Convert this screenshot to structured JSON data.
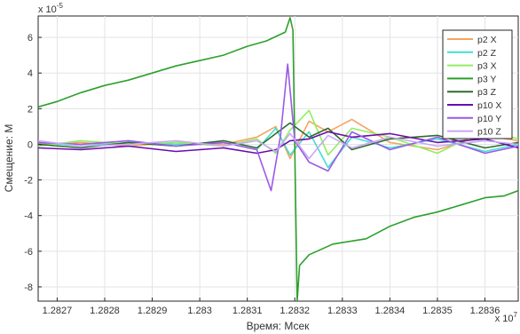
{
  "chart_data": {
    "type": "line",
    "xlabel": "Время: Мсек",
    "ylabel": "Смещение: М",
    "x_exponent_label": "x 10",
    "x_exponent_power": "7",
    "y_exponent_label": "x 10",
    "y_exponent_power": "-5",
    "xlim": [
      12826.6,
      12836.7
    ],
    "ylim": [
      -8.8,
      7.2
    ],
    "x_tick_values": [
      12827,
      12828,
      12829,
      12830,
      12831,
      12832,
      12833,
      12834,
      12835,
      12836
    ],
    "x_tick_labels": [
      "1.2827",
      "1.2828",
      "1.2829",
      "1.283",
      "1.2831",
      "1.2832",
      "1.2833",
      "1.2834",
      "1.2835",
      "1.2836"
    ],
    "y_tick_values": [
      6,
      4,
      2,
      0,
      -2,
      -4,
      -6,
      -8
    ],
    "y_tick_labels": [
      "6",
      "4",
      "2",
      "0",
      "-2",
      "-4",
      "-6",
      "-8"
    ],
    "grid": true,
    "legend_position": "top-right",
    "series": [
      {
        "name": "p2 X",
        "color": "#f4a460",
        "x": [
          12826.6,
          12827.5,
          12828.5,
          12829.5,
          12830.5,
          12831.2,
          12831.6,
          12831.9,
          12832.3,
          12832.7,
          12833.2,
          12834.0,
          12835.0,
          12836.0,
          12836.7
        ],
        "y": [
          0.0,
          0.1,
          -0.1,
          0.1,
          0.0,
          0.4,
          1.0,
          -0.8,
          1.3,
          0.7,
          1.4,
          0.1,
          -0.3,
          0.5,
          0.2
        ]
      },
      {
        "name": "p2 Z",
        "color": "#40e0d0",
        "x": [
          12826.6,
          12827.5,
          12828.5,
          12829.5,
          12830.5,
          12831.2,
          12831.6,
          12831.9,
          12832.3,
          12832.7,
          12833.2,
          12834.0,
          12835.0,
          12836.0,
          12836.7
        ],
        "y": [
          0.1,
          -0.1,
          0.1,
          0.0,
          0.1,
          -0.3,
          0.9,
          -0.6,
          0.7,
          -1.3,
          0.4,
          -0.2,
          0.3,
          -0.4,
          0.0
        ]
      },
      {
        "name": "p3 X",
        "color": "#90ee60",
        "x": [
          12826.6,
          12827.5,
          12828.5,
          12829.5,
          12830.5,
          12831.2,
          12831.6,
          12831.9,
          12832.3,
          12832.7,
          12833.2,
          12834.0,
          12835.0,
          12836.0,
          12836.7
        ],
        "y": [
          -0.1,
          0.2,
          0.0,
          0.1,
          -0.1,
          0.3,
          -0.5,
          0.8,
          1.9,
          -0.6,
          0.9,
          0.4,
          -0.5,
          0.8,
          0.3
        ]
      },
      {
        "name": "p3 Y",
        "color": "#2ca02c",
        "x": [
          12826.6,
          12827.0,
          12827.5,
          12828.0,
          12828.5,
          12829.0,
          12829.5,
          12830.0,
          12830.5,
          12831.0,
          12831.4,
          12831.8,
          12831.9,
          12831.96,
          12832.05,
          12832.1,
          12832.3,
          12832.8,
          12833.5,
          12834.0,
          12834.5,
          12835.0,
          12835.5,
          12836.0,
          12836.4,
          12836.7
        ],
        "y": [
          2.1,
          2.4,
          2.9,
          3.3,
          3.6,
          4.0,
          4.4,
          4.7,
          5.0,
          5.5,
          5.8,
          6.3,
          7.1,
          6.4,
          -8.8,
          -6.8,
          -6.2,
          -5.6,
          -5.3,
          -4.6,
          -4.1,
          -3.8,
          -3.4,
          -3.0,
          -2.9,
          -2.6
        ]
      },
      {
        "name": "p3 Z",
        "color": "#2f6b2f",
        "x": [
          12826.6,
          12827.5,
          12828.5,
          12829.5,
          12830.5,
          12831.2,
          12831.6,
          12831.9,
          12832.3,
          12832.7,
          12833.2,
          12834.0,
          12835.0,
          12836.0,
          12836.7
        ],
        "y": [
          0.0,
          -0.2,
          0.1,
          -0.1,
          0.2,
          -0.2,
          0.6,
          1.2,
          0.4,
          0.9,
          -0.3,
          0.3,
          0.5,
          -0.2,
          0.1
        ]
      },
      {
        "name": "p10 X",
        "color": "#6a0dad",
        "x": [
          12826.6,
          12827.5,
          12828.5,
          12829.5,
          12830.5,
          12831.2,
          12831.6,
          12831.9,
          12832.3,
          12832.7,
          12833.2,
          12834.0,
          12835.0,
          12836.0,
          12836.7
        ],
        "y": [
          -0.2,
          -0.3,
          -0.1,
          -0.4,
          -0.2,
          -0.5,
          -0.3,
          0.2,
          0.3,
          0.7,
          0.4,
          0.6,
          0.1,
          0.3,
          -0.2
        ]
      },
      {
        "name": "p10 Y",
        "color": "#9b59e6",
        "x": [
          12826.6,
          12827.5,
          12828.5,
          12829.5,
          12830.5,
          12831.2,
          12831.5,
          12831.7,
          12831.85,
          12832.0,
          12832.3,
          12832.7,
          12833.2,
          12834.0,
          12835.0,
          12836.0,
          12836.7
        ],
        "y": [
          0.1,
          0.0,
          0.2,
          -0.1,
          0.1,
          -0.3,
          -2.6,
          0.5,
          4.5,
          0.2,
          -1.0,
          -1.5,
          0.7,
          -0.3,
          0.4,
          -0.5,
          -0.1
        ]
      },
      {
        "name": "p10 Z",
        "color": "#c8a8f8",
        "x": [
          12826.6,
          12827.5,
          12828.5,
          12829.5,
          12830.5,
          12831.2,
          12831.6,
          12831.9,
          12832.3,
          12832.7,
          12833.2,
          12834.0,
          12835.0,
          12836.0,
          12836.7
        ],
        "y": [
          0.2,
          -0.1,
          0.0,
          0.2,
          -0.1,
          0.2,
          -0.4,
          0.6,
          -0.8,
          0.5,
          -0.2,
          0.4,
          -0.1,
          0.2,
          0.0
        ]
      }
    ]
  }
}
